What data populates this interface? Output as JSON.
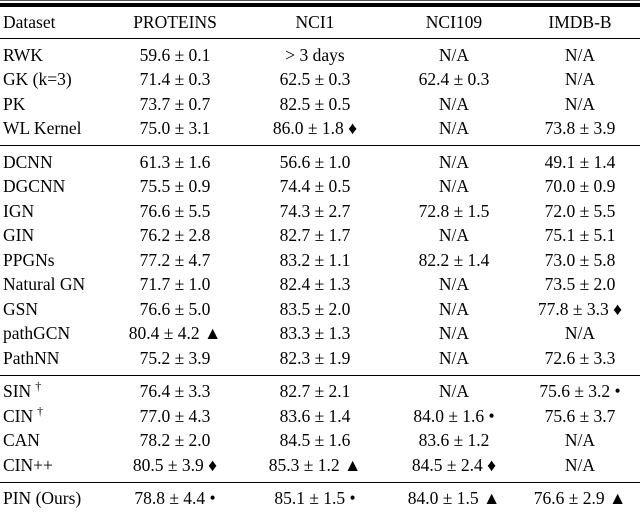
{
  "colors": {
    "background": "#ffffff",
    "text": "#000000",
    "rule": "#000000"
  },
  "table": {
    "header": {
      "columns": [
        "Dataset",
        "PROTEINS",
        "NCI1",
        "NCI109",
        "IMDB-B"
      ]
    },
    "sections": [
      {
        "name": "graph-kernels",
        "rows": [
          {
            "method": "RWK",
            "sup": "",
            "values": [
              "59.6 ± 0.1",
              "> 3 days",
              "N/A",
              "N/A"
            ]
          },
          {
            "method": "GK (k=3)",
            "sup": "",
            "values": [
              "71.4 ± 0.3",
              "62.5 ± 0.3",
              "62.4 ± 0.3",
              "N/A"
            ]
          },
          {
            "method": "PK",
            "sup": "",
            "values": [
              "73.7 ± 0.7",
              "82.5 ± 0.5",
              "N/A",
              "N/A"
            ]
          },
          {
            "method": "WL Kernel",
            "sup": "",
            "values": [
              "75.0 ± 3.1",
              "86.0 ± 1.8 ♦",
              "N/A",
              "73.8 ± 3.9"
            ]
          }
        ]
      },
      {
        "name": "graph-neural-networks",
        "rows": [
          {
            "method": "DCNN",
            "sup": "",
            "values": [
              "61.3 ± 1.6",
              "56.6 ± 1.0",
              "N/A",
              "49.1 ± 1.4"
            ]
          },
          {
            "method": "DGCNN",
            "sup": "",
            "values": [
              "75.5 ± 0.9",
              "74.4 ± 0.5",
              "N/A",
              "70.0 ± 0.9"
            ]
          },
          {
            "method": "IGN",
            "sup": "",
            "values": [
              "76.6 ± 5.5",
              "74.3 ± 2.7",
              "72.8 ± 1.5",
              "72.0 ± 5.5"
            ]
          },
          {
            "method": "GIN",
            "sup": "",
            "values": [
              "76.2 ± 2.8",
              "82.7 ± 1.7",
              "N/A",
              "75.1 ± 5.1"
            ]
          },
          {
            "method": "PPGNs",
            "sup": "",
            "values": [
              "77.2 ± 4.7",
              "83.2 ± 1.1",
              "82.2 ± 1.4",
              "73.0 ± 5.8"
            ]
          },
          {
            "method": "Natural GN",
            "sup": "",
            "values": [
              "71.7 ± 1.0",
              "82.4 ± 1.3",
              "N/A",
              "73.5 ± 2.0"
            ]
          },
          {
            "method": "GSN",
            "sup": "",
            "values": [
              "76.6 ± 5.0",
              "83.5 ± 2.0",
              "N/A",
              "77.8 ± 3.3 ♦"
            ]
          },
          {
            "method": "pathGCN",
            "sup": "",
            "values": [
              "80.4 ± 4.2 ▲",
              "83.3 ± 1.3",
              "N/A",
              "N/A"
            ]
          },
          {
            "method": "PathNN",
            "sup": "",
            "values": [
              "75.2 ± 3.9",
              "82.3 ± 1.9",
              "N/A",
              "72.6 ± 3.3"
            ]
          }
        ]
      },
      {
        "name": "topological-methods",
        "rows": [
          {
            "method": "SIN",
            "sup": "†",
            "values": [
              "76.4 ± 3.3",
              "82.7 ± 2.1",
              "N/A",
              "75.6 ± 3.2 •"
            ]
          },
          {
            "method": "CIN",
            "sup": "†",
            "values": [
              "77.0 ± 4.3",
              "83.6 ± 1.4",
              "84.0 ± 1.6 •",
              "75.6 ± 3.7"
            ]
          },
          {
            "method": "CAN",
            "sup": "",
            "values": [
              "78.2 ± 2.0",
              "84.5 ± 1.6",
              "83.6 ± 1.2",
              "N/A"
            ]
          },
          {
            "method": "CIN++",
            "sup": "",
            "values": [
              "80.5 ± 3.9 ♦",
              "85.3 ± 1.2 ▲",
              "84.5 ± 2.4 ♦",
              "N/A"
            ]
          }
        ]
      },
      {
        "name": "ours",
        "rows": [
          {
            "method": "PIN (Ours)",
            "sup": "",
            "values": [
              "78.8 ± 4.4 •",
              "85.1 ± 1.5 •",
              "84.0 ± 1.5 ▲",
              "76.6 ± 2.9 ▲"
            ]
          }
        ]
      }
    ]
  }
}
